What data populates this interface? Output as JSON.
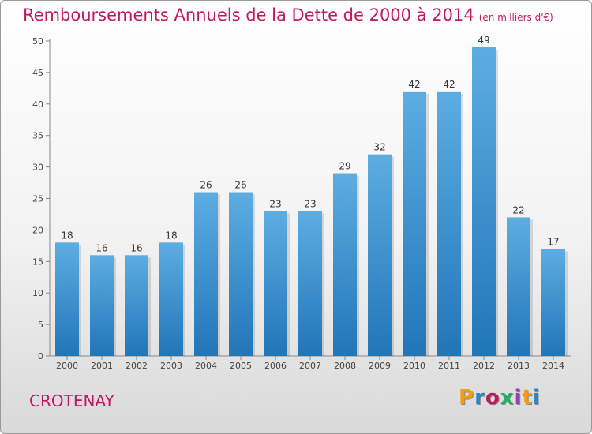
{
  "header": {
    "title": "Remboursements Annuels de la Dette de 2000 à 2014",
    "subtitle": "(en milliers d'€)"
  },
  "footer": {
    "town": "CROTENAY",
    "logo": "Proxiti"
  },
  "colors": {
    "bar_top": "#5dade2",
    "bar_bottom": "#2176b8",
    "title": "#c2185b"
  },
  "chart_data": {
    "type": "bar",
    "title": "Remboursements Annuels de la Dette de 2000 à 2014",
    "xlabel": "",
    "ylabel": "",
    "ylim": [
      0,
      50
    ],
    "yticks": [
      0,
      5,
      10,
      15,
      20,
      25,
      30,
      35,
      40,
      45,
      50
    ],
    "categories": [
      "2000",
      "2001",
      "2002",
      "2003",
      "2004",
      "2005",
      "2006",
      "2007",
      "2008",
      "2009",
      "2010",
      "2011",
      "2012",
      "2013",
      "2014"
    ],
    "values": [
      18,
      16,
      16,
      18,
      26,
      26,
      23,
      23,
      29,
      32,
      42,
      42,
      49,
      22,
      17
    ],
    "grid": false,
    "legend": "none"
  }
}
